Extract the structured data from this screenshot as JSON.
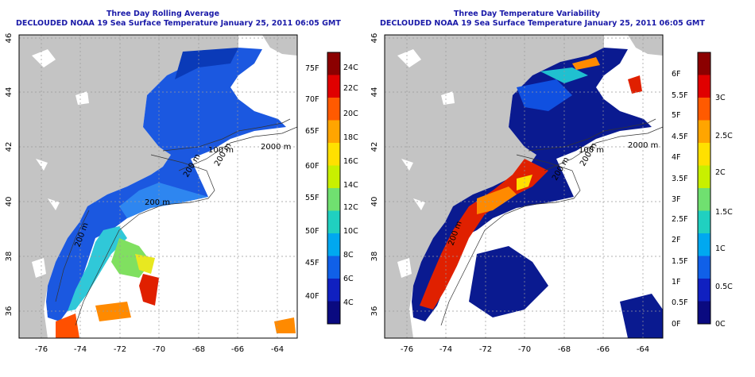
{
  "panels": [
    {
      "title1": "Three Day Rolling Average",
      "title2": "DECLOUDED NOAA 19 Sea Surface Temperature January 25, 2011 06:05 GMT",
      "lat_ticks": [
        "46",
        "44",
        "42",
        "40",
        "38",
        "36"
      ],
      "lon_ticks": [
        "-76",
        "-74",
        "-72",
        "-70",
        "-68",
        "-66",
        "-64"
      ],
      "contour_labels": [
        "100 m",
        "2000 m",
        "200 m",
        "200 m",
        "200 m",
        "200 m"
      ],
      "colorbar": {
        "left_labels": [
          "75F",
          "70F",
          "65F",
          "60F",
          "55F",
          "50F",
          "45F",
          "40F"
        ],
        "right_labels": [
          "24C",
          "22C",
          "20C",
          "18C",
          "16C",
          "14C",
          "12C",
          "10C",
          "8C",
          "6C",
          "4C"
        ],
        "colors": [
          "#8b0000",
          "#e00000",
          "#ff5a00",
          "#ffa500",
          "#ffe000",
          "#c8f000",
          "#70e070",
          "#20d0c0",
          "#00a8f0",
          "#1060e8",
          "#1020c0",
          "#0a0a80"
        ]
      }
    },
    {
      "title1": "Three Day Temperature Variability",
      "title2": "DECLOUDED NOAA 19 Sea Surface Temperature January 25, 2011 06:05 GMT",
      "lat_ticks": [
        "46",
        "44",
        "42",
        "40",
        "38",
        "36"
      ],
      "lon_ticks": [
        "-76",
        "-74",
        "-72",
        "-70",
        "-68",
        "-66",
        "-64"
      ],
      "contour_labels": [
        "100 m",
        "2000 m",
        "200 m",
        "200 m",
        "200 m"
      ],
      "colorbar": {
        "left_labels": [
          "6F",
          "5.5F",
          "5F",
          "4.5F",
          "4F",
          "3.5F",
          "3F",
          "2.5F",
          "2F",
          "1.5F",
          "1F",
          "0.5F",
          "0F"
        ],
        "right_labels": [
          "3C",
          "2.5C",
          "2C",
          "1.5C",
          "1C",
          "0.5C",
          "0C"
        ],
        "colors": [
          "#8b0000",
          "#e00000",
          "#ff5a00",
          "#ffa500",
          "#ffe000",
          "#c8f000",
          "#70e070",
          "#20d0c0",
          "#00a8f0",
          "#1060e8",
          "#1020c0",
          "#0a0a80"
        ]
      }
    }
  ]
}
